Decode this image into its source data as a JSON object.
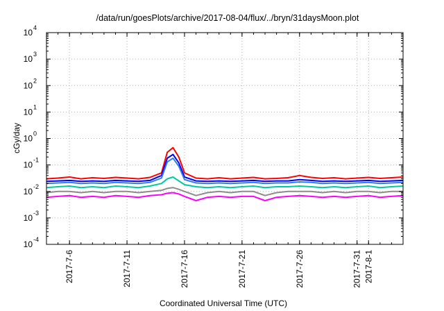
{
  "chart_data": {
    "type": "line",
    "title": "/data/run/goesPlots/archive/2017-08-04/flux/../bryn/31daysMoon.plot",
    "xlabel": "Coordinated Universal Time (UTC)",
    "ylabel": "cGy/day",
    "yscale": "log",
    "ylim": [
      0.0001,
      10000
    ],
    "xlim": [
      "2017-07-04",
      "2017-08-04"
    ],
    "grid": true,
    "y_ticks": [
      {
        "base": "10",
        "exp": "-4",
        "value": 0.0001
      },
      {
        "base": "10",
        "exp": "-3",
        "value": 0.001
      },
      {
        "base": "10",
        "exp": "-2",
        "value": 0.01
      },
      {
        "base": "10",
        "exp": "-1",
        "value": 0.1
      },
      {
        "base": "10",
        "exp": "0",
        "value": 1
      },
      {
        "base": "10",
        "exp": "1",
        "value": 10
      },
      {
        "base": "10",
        "exp": "2",
        "value": 100
      },
      {
        "base": "10",
        "exp": "3",
        "value": 1000
      },
      {
        "base": "10",
        "exp": "4",
        "value": 10000
      }
    ],
    "x_ticks": [
      "2017-7-6",
      "2017-7-11",
      "2017-7-16",
      "2017-7-21",
      "2017-7-26",
      "2017-7-31",
      "2017-8-1"
    ],
    "series": [
      {
        "color": "#ff0000",
        "points": [
          [
            "2017-07-04",
            0.03
          ],
          [
            "2017-07-05",
            0.032
          ],
          [
            "2017-07-06",
            0.035
          ],
          [
            "2017-07-07",
            0.03
          ],
          [
            "2017-07-08",
            0.033
          ],
          [
            "2017-07-09",
            0.031
          ],
          [
            "2017-07-10",
            0.034
          ],
          [
            "2017-07-11",
            0.032
          ],
          [
            "2017-07-12",
            0.03
          ],
          [
            "2017-07-13",
            0.034
          ],
          [
            "2017-07-14",
            0.05
          ],
          [
            "2017-07-14T12:00",
            0.3
          ],
          [
            "2017-07-15",
            0.45
          ],
          [
            "2017-07-15T12:00",
            0.2
          ],
          [
            "2017-07-16",
            0.05
          ],
          [
            "2017-07-17",
            0.032
          ],
          [
            "2017-07-18",
            0.03
          ],
          [
            "2017-07-19",
            0.033
          ],
          [
            "2017-07-20",
            0.03
          ],
          [
            "2017-07-21",
            0.032
          ],
          [
            "2017-07-22",
            0.034
          ],
          [
            "2017-07-23",
            0.03
          ],
          [
            "2017-07-24",
            0.031
          ],
          [
            "2017-07-25",
            0.033
          ],
          [
            "2017-07-26",
            0.04
          ],
          [
            "2017-07-27",
            0.034
          ],
          [
            "2017-07-28",
            0.031
          ],
          [
            "2017-07-29",
            0.033
          ],
          [
            "2017-07-30",
            0.03
          ],
          [
            "2017-07-31",
            0.032
          ],
          [
            "2017-08-01",
            0.034
          ],
          [
            "2017-08-02",
            0.031
          ],
          [
            "2017-08-03",
            0.033
          ],
          [
            "2017-08-04",
            0.035
          ]
        ]
      },
      {
        "color": "#0000ff",
        "points": [
          [
            "2017-07-04",
            0.024
          ],
          [
            "2017-07-05",
            0.025
          ],
          [
            "2017-07-06",
            0.026
          ],
          [
            "2017-07-07",
            0.024
          ],
          [
            "2017-07-08",
            0.025
          ],
          [
            "2017-07-09",
            0.024
          ],
          [
            "2017-07-10",
            0.026
          ],
          [
            "2017-07-11",
            0.025
          ],
          [
            "2017-07-12",
            0.024
          ],
          [
            "2017-07-13",
            0.026
          ],
          [
            "2017-07-14",
            0.04
          ],
          [
            "2017-07-14T12:00",
            0.18
          ],
          [
            "2017-07-15",
            0.25
          ],
          [
            "2017-07-15T12:00",
            0.12
          ],
          [
            "2017-07-16",
            0.035
          ],
          [
            "2017-07-17",
            0.025
          ],
          [
            "2017-07-18",
            0.024
          ],
          [
            "2017-07-19",
            0.025
          ],
          [
            "2017-07-20",
            0.024
          ],
          [
            "2017-07-21",
            0.025
          ],
          [
            "2017-07-22",
            0.026
          ],
          [
            "2017-07-23",
            0.024
          ],
          [
            "2017-07-24",
            0.025
          ],
          [
            "2017-07-25",
            0.025
          ],
          [
            "2017-07-26",
            0.028
          ],
          [
            "2017-07-27",
            0.026
          ],
          [
            "2017-07-28",
            0.024
          ],
          [
            "2017-07-29",
            0.025
          ],
          [
            "2017-07-30",
            0.024
          ],
          [
            "2017-07-31",
            0.025
          ],
          [
            "2017-08-01",
            0.026
          ],
          [
            "2017-08-02",
            0.024
          ],
          [
            "2017-08-03",
            0.025
          ],
          [
            "2017-08-04",
            0.026
          ]
        ]
      },
      {
        "color": "#2f7fe8",
        "points": [
          [
            "2017-07-04",
            0.02
          ],
          [
            "2017-07-05",
            0.021
          ],
          [
            "2017-07-06",
            0.022
          ],
          [
            "2017-07-07",
            0.02
          ],
          [
            "2017-07-08",
            0.021
          ],
          [
            "2017-07-09",
            0.02
          ],
          [
            "2017-07-10",
            0.022
          ],
          [
            "2017-07-11",
            0.021
          ],
          [
            "2017-07-12",
            0.02
          ],
          [
            "2017-07-13",
            0.022
          ],
          [
            "2017-07-14",
            0.032
          ],
          [
            "2017-07-14T12:00",
            0.13
          ],
          [
            "2017-07-15",
            0.18
          ],
          [
            "2017-07-15T12:00",
            0.09
          ],
          [
            "2017-07-16",
            0.028
          ],
          [
            "2017-07-17",
            0.021
          ],
          [
            "2017-07-18",
            0.02
          ],
          [
            "2017-07-19",
            0.021
          ],
          [
            "2017-07-20",
            0.02
          ],
          [
            "2017-07-21",
            0.021
          ],
          [
            "2017-07-22",
            0.022
          ],
          [
            "2017-07-23",
            0.02
          ],
          [
            "2017-07-24",
            0.021
          ],
          [
            "2017-07-25",
            0.021
          ],
          [
            "2017-07-26",
            0.023
          ],
          [
            "2017-07-27",
            0.022
          ],
          [
            "2017-07-28",
            0.02
          ],
          [
            "2017-07-29",
            0.021
          ],
          [
            "2017-07-30",
            0.02
          ],
          [
            "2017-07-31",
            0.021
          ],
          [
            "2017-08-01",
            0.022
          ],
          [
            "2017-08-02",
            0.02
          ],
          [
            "2017-08-03",
            0.021
          ],
          [
            "2017-08-04",
            0.022
          ]
        ]
      },
      {
        "color": "#00c8a0",
        "points": [
          [
            "2017-07-04",
            0.014
          ],
          [
            "2017-07-05",
            0.015
          ],
          [
            "2017-07-06",
            0.016
          ],
          [
            "2017-07-07",
            0.014
          ],
          [
            "2017-07-08",
            0.015
          ],
          [
            "2017-07-09",
            0.014
          ],
          [
            "2017-07-10",
            0.016
          ],
          [
            "2017-07-11",
            0.015
          ],
          [
            "2017-07-12",
            0.014
          ],
          [
            "2017-07-13",
            0.016
          ],
          [
            "2017-07-14",
            0.02
          ],
          [
            "2017-07-14T12:00",
            0.03
          ],
          [
            "2017-07-15",
            0.035
          ],
          [
            "2017-07-15T12:00",
            0.025
          ],
          [
            "2017-07-16",
            0.018
          ],
          [
            "2017-07-17",
            0.015
          ],
          [
            "2017-07-18",
            0.014
          ],
          [
            "2017-07-19",
            0.015
          ],
          [
            "2017-07-20",
            0.014
          ],
          [
            "2017-07-21",
            0.015
          ],
          [
            "2017-07-22",
            0.016
          ],
          [
            "2017-07-23",
            0.014
          ],
          [
            "2017-07-24",
            0.015
          ],
          [
            "2017-07-25",
            0.015
          ],
          [
            "2017-07-26",
            0.016
          ],
          [
            "2017-07-27",
            0.015
          ],
          [
            "2017-07-28",
            0.014
          ],
          [
            "2017-07-29",
            0.015
          ],
          [
            "2017-07-30",
            0.014
          ],
          [
            "2017-07-31",
            0.015
          ],
          [
            "2017-08-01",
            0.016
          ],
          [
            "2017-08-02",
            0.014
          ],
          [
            "2017-08-03",
            0.015
          ],
          [
            "2017-08-04",
            0.016
          ]
        ]
      },
      {
        "color": "#8c8c8c",
        "points": [
          [
            "2017-07-04",
            0.009
          ],
          [
            "2017-07-05",
            0.01
          ],
          [
            "2017-07-06",
            0.01
          ],
          [
            "2017-07-07",
            0.009
          ],
          [
            "2017-07-08",
            0.01
          ],
          [
            "2017-07-09",
            0.009
          ],
          [
            "2017-07-10",
            0.01
          ],
          [
            "2017-07-11",
            0.01
          ],
          [
            "2017-07-12",
            0.009
          ],
          [
            "2017-07-13",
            0.01
          ],
          [
            "2017-07-14",
            0.011
          ],
          [
            "2017-07-14T12:00",
            0.013
          ],
          [
            "2017-07-15",
            0.014
          ],
          [
            "2017-07-15T12:00",
            0.012
          ],
          [
            "2017-07-16",
            0.01
          ],
          [
            "2017-07-17",
            0.007
          ],
          [
            "2017-07-18",
            0.009
          ],
          [
            "2017-07-19",
            0.01
          ],
          [
            "2017-07-20",
            0.009
          ],
          [
            "2017-07-21",
            0.01
          ],
          [
            "2017-07-22",
            0.01
          ],
          [
            "2017-07-23",
            0.007
          ],
          [
            "2017-07-24",
            0.009
          ],
          [
            "2017-07-25",
            0.01
          ],
          [
            "2017-07-26",
            0.01
          ],
          [
            "2017-07-27",
            0.01
          ],
          [
            "2017-07-28",
            0.009
          ],
          [
            "2017-07-29",
            0.01
          ],
          [
            "2017-07-30",
            0.009
          ],
          [
            "2017-07-31",
            0.01
          ],
          [
            "2017-08-01",
            0.01
          ],
          [
            "2017-08-02",
            0.009
          ],
          [
            "2017-08-03",
            0.01
          ],
          [
            "2017-08-04",
            0.01
          ]
        ]
      },
      {
        "color": "#ff00ff",
        "points": [
          [
            "2017-07-04",
            0.006
          ],
          [
            "2017-07-05",
            0.0065
          ],
          [
            "2017-07-06",
            0.007
          ],
          [
            "2017-07-07",
            0.006
          ],
          [
            "2017-07-08",
            0.0065
          ],
          [
            "2017-07-09",
            0.006
          ],
          [
            "2017-07-10",
            0.007
          ],
          [
            "2017-07-11",
            0.0065
          ],
          [
            "2017-07-12",
            0.006
          ],
          [
            "2017-07-13",
            0.007
          ],
          [
            "2017-07-14",
            0.0075
          ],
          [
            "2017-07-14T12:00",
            0.0085
          ],
          [
            "2017-07-15",
            0.009
          ],
          [
            "2017-07-15T12:00",
            0.008
          ],
          [
            "2017-07-16",
            0.0065
          ],
          [
            "2017-07-17",
            0.0045
          ],
          [
            "2017-07-18",
            0.006
          ],
          [
            "2017-07-19",
            0.0065
          ],
          [
            "2017-07-20",
            0.006
          ],
          [
            "2017-07-21",
            0.0065
          ],
          [
            "2017-07-22",
            0.0065
          ],
          [
            "2017-07-23",
            0.0045
          ],
          [
            "2017-07-24",
            0.006
          ],
          [
            "2017-07-25",
            0.0065
          ],
          [
            "2017-07-26",
            0.007
          ],
          [
            "2017-07-27",
            0.0065
          ],
          [
            "2017-07-28",
            0.006
          ],
          [
            "2017-07-29",
            0.0065
          ],
          [
            "2017-07-30",
            0.006
          ],
          [
            "2017-07-31",
            0.0065
          ],
          [
            "2017-08-01",
            0.007
          ],
          [
            "2017-08-02",
            0.006
          ],
          [
            "2017-08-03",
            0.0065
          ],
          [
            "2017-08-04",
            0.007
          ]
        ]
      }
    ]
  }
}
